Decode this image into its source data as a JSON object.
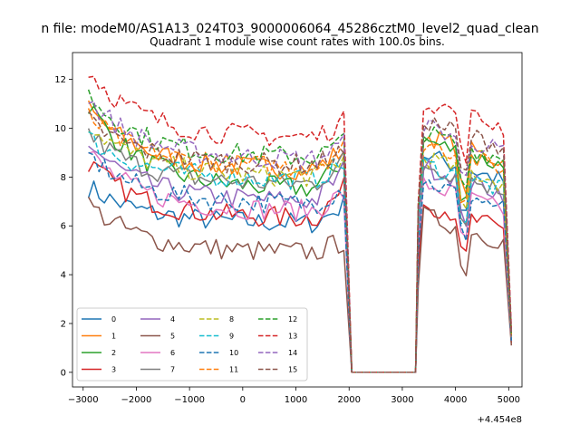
{
  "header": {
    "suptitle": "n file: modeM0/AS1A13_024T03_9000006064_45286cztM0_level2_quad_clean",
    "title": "Quadrant 1 module wise count rates with 100.0s bins."
  },
  "chart_data": {
    "type": "line",
    "title": "Quadrant 1 module wise count rates with 100.0s bins.",
    "xlabel": "",
    "ylabel": "",
    "x_offset_label": "+4.454e8",
    "xlim": [
      -3200,
      5250
    ],
    "ylim": [
      -0.6,
      13.1
    ],
    "xticks": [
      -3000,
      -2000,
      -1000,
      0,
      1000,
      2000,
      3000,
      4000,
      5000
    ],
    "yticks": [
      0,
      2,
      4,
      6,
      8,
      10,
      12
    ],
    "xtick_labels": [
      "−3000",
      "−2000",
      "−1000",
      "0",
      "1000",
      "2000",
      "3000",
      "4000",
      "5000"
    ],
    "ytick_labels": [
      "0",
      "2",
      "4",
      "6",
      "8",
      "10",
      "12"
    ],
    "grid": false,
    "legend_position": "lower-left",
    "segments": [
      {
        "x_start": -2900,
        "x_end": 1950,
        "step": 100
      },
      {
        "x_start": 3300,
        "x_end": 4950,
        "step": 100
      }
    ],
    "gap": {
      "x": [
        2050,
        2150,
        2250,
        2350,
        2450,
        2550,
        2650,
        2750,
        2850,
        2950,
        3050,
        3150,
        3250
      ],
      "value": 0
    },
    "end_x": 5050,
    "series": [
      {
        "name": "0",
        "color": "#1f77b4",
        "dash": "solid",
        "start": 7.6,
        "level": 6.1,
        "peak": 6.9,
        "peak2": 9.0,
        "end": 1.3
      },
      {
        "name": "1",
        "color": "#ff7f0e",
        "dash": "solid",
        "start": 10.8,
        "level": 8.3,
        "peak": 9.2,
        "peak2": 9.8,
        "end": 1.6
      },
      {
        "name": "2",
        "color": "#2ca02c",
        "dash": "solid",
        "start": 11.0,
        "level": 7.5,
        "peak": 8.8,
        "peak2": 9.6,
        "end": 1.5
      },
      {
        "name": "3",
        "color": "#d62728",
        "dash": "solid",
        "start": 8.6,
        "level": 6.3,
        "peak": 7.6,
        "peak2": 7.0,
        "end": 1.2
      },
      {
        "name": "4",
        "color": "#9467bd",
        "dash": "solid",
        "start": 9.4,
        "level": 7.0,
        "peak": 8.4,
        "peak2": 8.5,
        "end": 1.4
      },
      {
        "name": "5",
        "color": "#8c564b",
        "dash": "solid",
        "start": 6.9,
        "level": 4.9,
        "peak": 5.4,
        "peak2": 6.5,
        "end": 1.1
      },
      {
        "name": "6",
        "color": "#e377c2",
        "dash": "solid",
        "start": 9.0,
        "level": 6.6,
        "peak": 7.4,
        "peak2": 7.8,
        "end": 1.3
      },
      {
        "name": "7",
        "color": "#7f7f7f",
        "dash": "solid",
        "start": 9.8,
        "level": 7.7,
        "peak": 8.8,
        "peak2": 8.6,
        "end": 1.4
      },
      {
        "name": "8",
        "color": "#bcbd22",
        "dash": "dashed",
        "start": 10.2,
        "level": 8.0,
        "peak": 8.8,
        "peak2": 8.9,
        "end": 1.5
      },
      {
        "name": "9",
        "color": "#17becf",
        "dash": "dashed",
        "start": 9.6,
        "level": 7.9,
        "peak": 8.6,
        "peak2": 8.6,
        "end": 1.4
      },
      {
        "name": "10",
        "color": "#1f77b4",
        "dash": "dashed",
        "start": 8.9,
        "level": 6.9,
        "peak": 7.6,
        "peak2": 7.9,
        "end": 1.3
      },
      {
        "name": "11",
        "color": "#ff7f0e",
        "dash": "dashed",
        "start": 10.5,
        "level": 8.4,
        "peak": 9.3,
        "peak2": 9.5,
        "end": 1.5
      },
      {
        "name": "12",
        "color": "#2ca02c",
        "dash": "dashed",
        "start": 11.4,
        "level": 8.8,
        "peak": 9.5,
        "peak2": 9.9,
        "end": 1.6
      },
      {
        "name": "13",
        "color": "#d62728",
        "dash": "dashed",
        "start": 12.4,
        "level": 9.6,
        "peak": 10.3,
        "peak2": 11.2,
        "end": 1.8
      },
      {
        "name": "14",
        "color": "#9467bd",
        "dash": "dashed",
        "start": 11.2,
        "level": 8.7,
        "peak": 9.4,
        "peak2": 10.2,
        "end": 1.6
      },
      {
        "name": "15",
        "color": "#8c564b",
        "dash": "dashed",
        "start": 10.3,
        "level": 8.5,
        "peak": 9.1,
        "peak2": 10.4,
        "end": 1.5
      }
    ]
  }
}
